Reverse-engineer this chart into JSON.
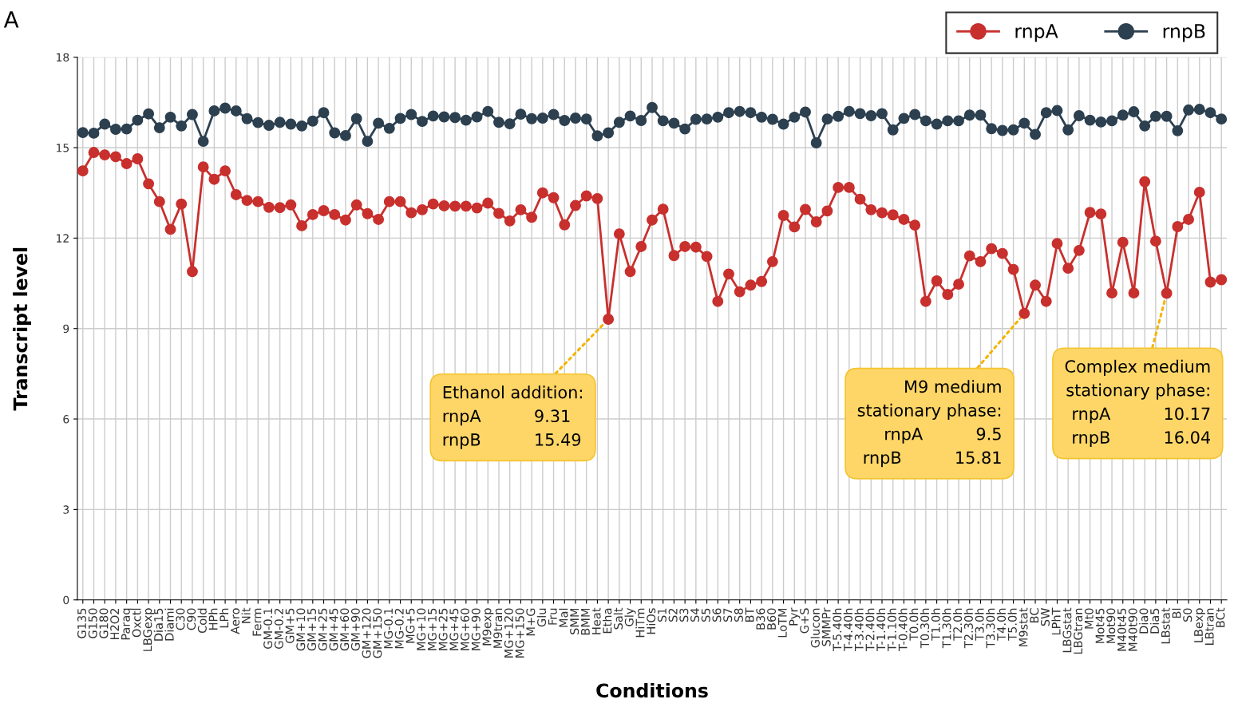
{
  "chart_data": {
    "type": "line",
    "xlabel": "Conditions",
    "ylabel": "Transcript level",
    "categories": [
      "G135",
      "G150",
      "G180",
      "H2O2",
      "Paraq",
      "Oxctl",
      "LBGexp",
      "Dia15",
      "Diami",
      "C30",
      "C90",
      "Cold",
      "HPh",
      "LPh",
      "Aero",
      "Nit",
      "Ferm",
      "GM-0.1",
      "GM-0.2",
      "GM+5",
      "GM+10",
      "GM+15",
      "GM+25",
      "GM+45",
      "GM+60",
      "GM+90",
      "GM+120",
      "GM+150",
      "MG-0.1",
      "MG-0.2",
      "MG+5",
      "MG+10",
      "MG+15",
      "MG+25",
      "MG+45",
      "MG+60",
      "MG+90",
      "M9exp",
      "M9tran",
      "MG+120",
      "MG+150",
      "M+G",
      "Glu",
      "Fru",
      "Mal",
      "SMM",
      "BMM",
      "Heat",
      "Etha",
      "Salt",
      "Gly",
      "HiTm",
      "HiOs",
      "S1",
      "S2",
      "S3",
      "S4",
      "S5",
      "S6",
      "S7",
      "S8",
      "BT",
      "B36",
      "B60",
      "LoTM",
      "Pyr",
      "G+S",
      "Glucon",
      "SMMPr",
      "T-5.40h",
      "T-4.40h",
      "T-3.40h",
      "T-2.40h",
      "T-1.40h",
      "T-1.10h",
      "T-0.40h",
      "T0.0h",
      "T0.30h",
      "T1.0h",
      "T1.30h",
      "T2.0h",
      "T2.30h",
      "T3.0h",
      "T3.30h",
      "T4.0h",
      "T5.0h",
      "M9stat",
      "BC",
      "SW",
      "LPhT",
      "LBGstat",
      "LBGtran",
      "Mt0",
      "Mot45",
      "Mot90",
      "M40t45",
      "M40t90",
      "Dia0",
      "Dia5",
      "LBstat",
      "Bl",
      "S0",
      "LBexp",
      "LBtran",
      "BCt"
    ],
    "series": [
      {
        "name": "rnpA",
        "color": "#c8302e",
        "values": [
          14.23,
          14.84,
          14.76,
          14.7,
          14.47,
          14.63,
          13.8,
          13.21,
          12.29,
          13.13,
          10.89,
          14.36,
          13.95,
          14.23,
          13.44,
          13.25,
          13.21,
          13.02,
          13.01,
          13.1,
          12.41,
          12.78,
          12.91,
          12.78,
          12.6,
          13.1,
          12.81,
          12.62,
          13.21,
          13.21,
          12.84,
          12.94,
          13.13,
          13.07,
          13.06,
          13.06,
          13.0,
          13.16,
          12.82,
          12.57,
          12.94,
          12.69,
          13.5,
          13.34,
          12.44,
          13.08,
          13.4,
          13.31,
          9.31,
          12.14,
          10.89,
          11.72,
          12.6,
          12.96,
          11.42,
          11.72,
          11.7,
          11.39,
          9.9,
          10.81,
          10.22,
          10.44,
          10.56,
          11.22,
          12.75,
          12.37,
          12.95,
          12.54,
          12.9,
          13.68,
          13.68,
          13.29,
          12.94,
          12.84,
          12.77,
          12.62,
          12.43,
          9.9,
          10.58,
          10.13,
          10.47,
          11.41,
          11.22,
          11.65,
          11.49,
          10.96,
          9.5,
          10.44,
          9.9,
          11.82,
          11.0,
          11.59,
          12.85,
          12.8,
          10.18,
          11.86,
          10.18,
          13.87,
          11.9,
          10.17,
          12.38,
          12.62,
          13.52,
          10.54,
          10.62
        ]
      },
      {
        "name": "rnpB",
        "color": "#2c4050",
        "values": [
          15.5,
          15.48,
          15.78,
          15.61,
          15.62,
          15.91,
          16.12,
          15.66,
          16.01,
          15.72,
          16.1,
          15.21,
          16.22,
          16.31,
          16.22,
          15.96,
          15.83,
          15.74,
          15.84,
          15.78,
          15.72,
          15.88,
          16.16,
          15.49,
          15.4,
          15.96,
          15.21,
          15.81,
          15.64,
          15.97,
          16.1,
          15.87,
          16.05,
          16.02,
          16.0,
          15.91,
          16.02,
          16.2,
          15.84,
          15.79,
          16.11,
          15.96,
          15.98,
          16.1,
          15.9,
          15.98,
          15.95,
          15.39,
          15.49,
          15.84,
          16.05,
          15.9,
          16.33,
          15.89,
          15.81,
          15.62,
          15.94,
          15.95,
          16.01,
          16.16,
          16.2,
          16.16,
          16.01,
          15.94,
          15.78,
          16.01,
          16.18,
          15.16,
          15.95,
          16.04,
          16.2,
          16.13,
          16.06,
          16.13,
          15.59,
          15.97,
          16.1,
          15.89,
          15.78,
          15.89,
          15.89,
          16.08,
          16.08,
          15.63,
          15.57,
          15.59,
          15.81,
          15.44,
          16.16,
          16.23,
          15.59,
          16.06,
          15.91,
          15.85,
          15.89,
          16.08,
          16.19,
          15.72,
          16.04,
          16.04,
          15.56,
          16.25,
          16.27,
          16.16,
          15.95
        ]
      }
    ],
    "ylim": [
      0,
      18
    ],
    "yticks": [
      0,
      3,
      6,
      9,
      12,
      15,
      18
    ],
    "grid": true,
    "legend": "top right",
    "marker": "circle",
    "line_style": "solid",
    "annotations": [
      "A",
      {
        "text": "Ethanol addition:\nrnpA          9.31\nrnpB          15.49",
        "x": "Etha",
        "y": 9.31
      },
      {
        "text": "M9 medium\nstationary phase:\nrnpA          9.5\nrnpB          15.81",
        "x": "M9stat",
        "y": 9.5
      },
      {
        "text": "Complex medium\nstationary phase:\nrnpA          10.17\nrnpB          16.04",
        "x": "LBstat",
        "y": 10.17
      }
    ]
  }
}
